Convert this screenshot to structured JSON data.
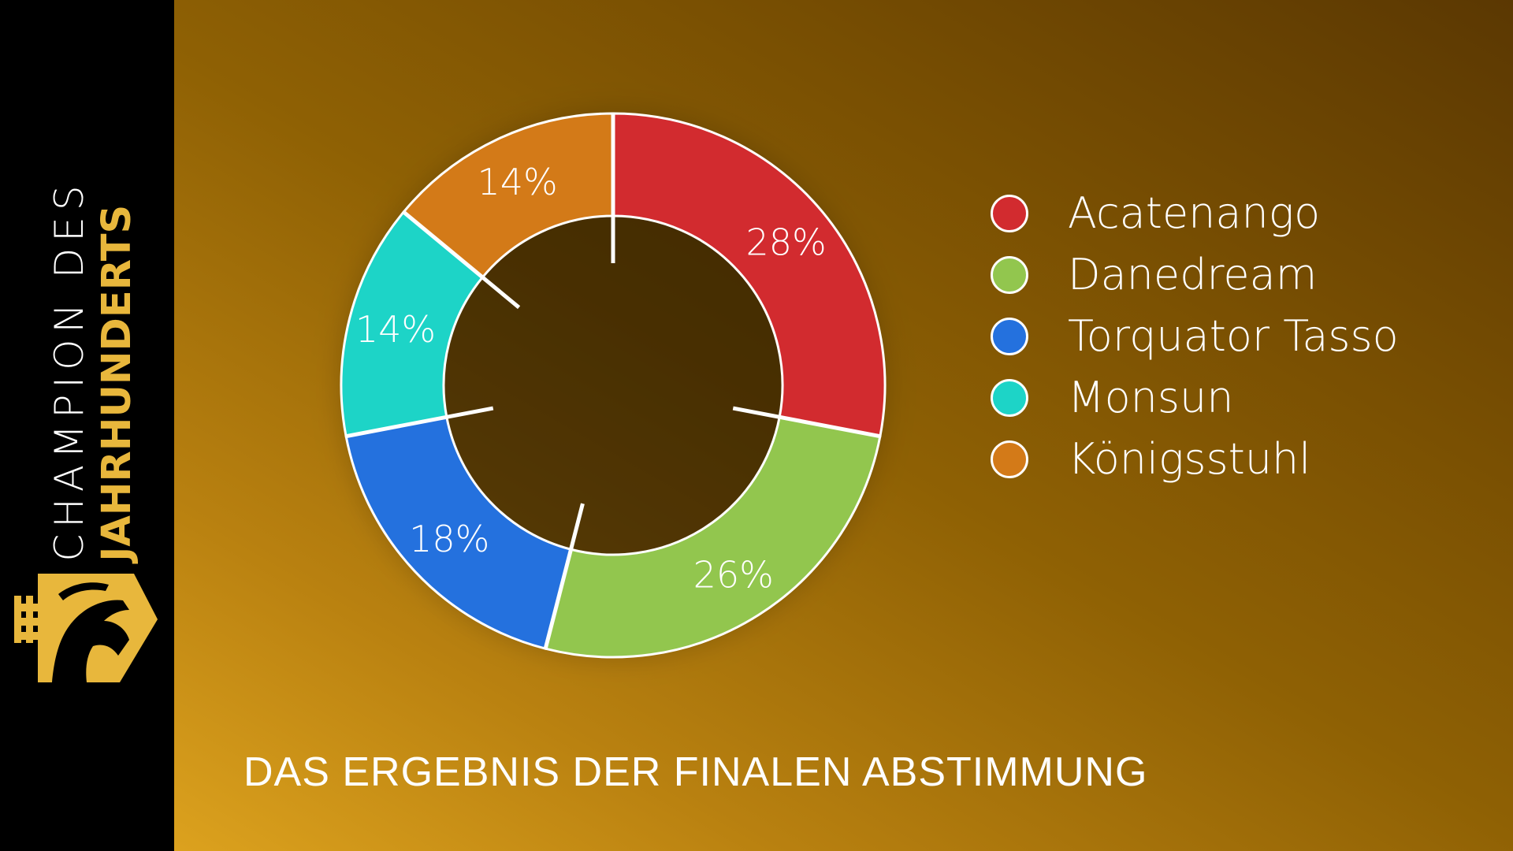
{
  "sidebar": {
    "title_line1": "CHAMPION DES",
    "title_line2": "JAHRHUNDERTS",
    "accent_color": "#e8b73c"
  },
  "caption": "DAS ERGEBNIS DER FINALEN ABSTIMMUNG",
  "chart_data": {
    "type": "pie",
    "donut": true,
    "categories": [
      "Acatenango",
      "Danedream",
      "Torquator Tasso",
      "Monsun",
      "Königsstuhl"
    ],
    "values": [
      28,
      26,
      18,
      14,
      14
    ],
    "labels": [
      "28%",
      "26%",
      "18%",
      "14%",
      "14%"
    ],
    "colors": [
      "#d22b2f",
      "#92c64e",
      "#2471de",
      "#1dd4c7",
      "#d37a18"
    ],
    "title": "",
    "legend": "right"
  }
}
